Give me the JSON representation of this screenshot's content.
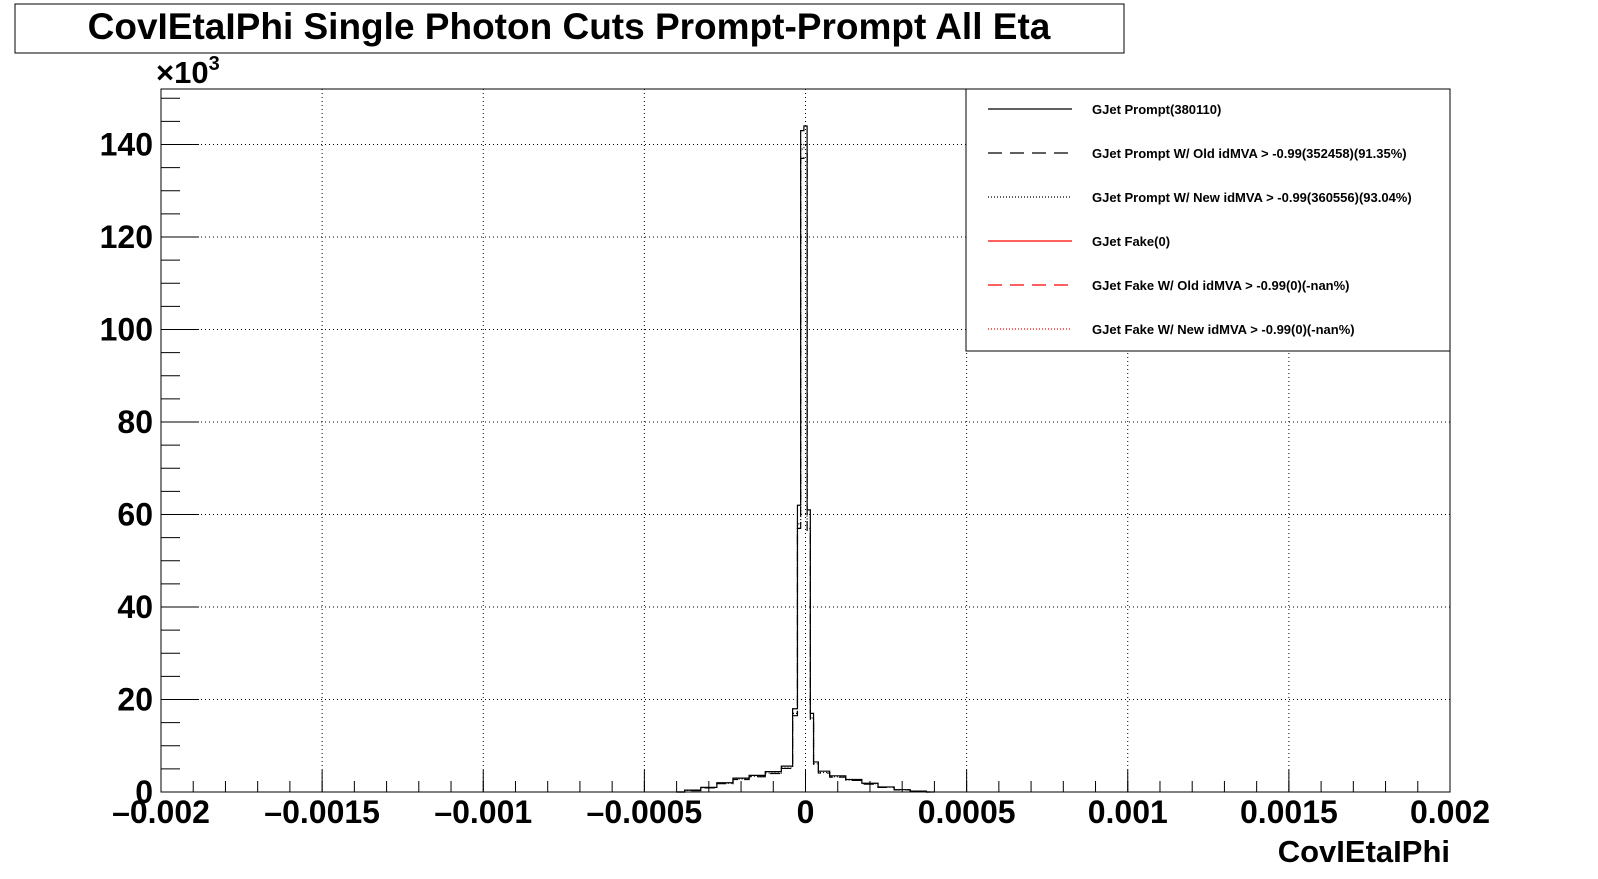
{
  "chart_data": {
    "type": "line",
    "title": "CovIEtaIPhi Single Photon Cuts Prompt-Prompt All Eta",
    "xlabel": "CovIEtaIPhi",
    "ylabel": "",
    "xlim": [
      -0.002,
      0.002
    ],
    "ylim": [
      0,
      152
    ],
    "y_multiplier": "10",
    "y_multiplier_exp": "3",
    "grid": true,
    "legend_position": "top-right",
    "x_ticks": [
      -0.002,
      -0.0015,
      -0.001,
      -0.0005,
      0,
      0.0005,
      0.001,
      0.0015,
      0.002
    ],
    "x_tick_labels": [
      "–0.002",
      "–0.0015",
      "–0.001",
      "–0.0005",
      "0",
      "0.0005",
      "0.001",
      "0.0015",
      "0.002"
    ],
    "y_ticks": [
      0,
      20,
      40,
      60,
      80,
      100,
      120,
      140
    ],
    "y_tick_labels": [
      "0",
      "20",
      "40",
      "60",
      "80",
      "100",
      "120",
      "140"
    ],
    "series": [
      {
        "name": "GJet Prompt(380110)",
        "color": "#000000",
        "style": "solid",
        "x": [
          -0.0004,
          -0.00035,
          -0.0003,
          -0.00025,
          -0.0002,
          -0.00015,
          -0.0001,
          -5e-05,
          -3e-05,
          -2e-05,
          -1e-05,
          0,
          1e-05,
          2e-05,
          3e-05,
          5e-05,
          0.0001,
          0.00015,
          0.0002,
          0.00025,
          0.0003,
          0.00035,
          0.0004
        ],
        "y": [
          0,
          0.4,
          1.0,
          2.0,
          3.0,
          3.6,
          4.4,
          5.6,
          18,
          62,
          143,
          144,
          61,
          17,
          6.5,
          4.5,
          3.5,
          2.7,
          1.9,
          1.1,
          0.5,
          0.2,
          0
        ]
      },
      {
        "name": "GJet Prompt W/ Old idMVA > -0.99(352458)(91.35%)",
        "color": "#000000",
        "style": "dashed",
        "x": [
          -0.0004,
          -0.00035,
          -0.0003,
          -0.00025,
          -0.0002,
          -0.00015,
          -0.0001,
          -5e-05,
          -3e-05,
          -2e-05,
          -1e-05,
          0,
          1e-05,
          2e-05,
          3e-05,
          5e-05,
          0.0001,
          0.00015,
          0.0002,
          0.00025,
          0.0003,
          0.00035,
          0.0004
        ],
        "y": [
          0,
          0.3,
          0.9,
          1.8,
          2.7,
          3.3,
          4.0,
          5.1,
          16.5,
          57,
          137,
          138,
          56,
          15.6,
          6.0,
          4.1,
          3.2,
          2.5,
          1.7,
          1.0,
          0.45,
          0.18,
          0
        ]
      },
      {
        "name": "GJet Prompt W/ New idMVA > -0.99(360556)(93.04%)",
        "color": "#000000",
        "style": "dotted",
        "x": [
          -0.0004,
          -0.00035,
          -0.0003,
          -0.00025,
          -0.0002,
          -0.00015,
          -0.0001,
          -5e-05,
          -3e-05,
          -2e-05,
          -1e-05,
          0,
          1e-05,
          2e-05,
          3e-05,
          5e-05,
          0.0001,
          0.00015,
          0.0002,
          0.00025,
          0.0003,
          0.00035,
          0.0004
        ],
        "y": [
          0,
          0.35,
          0.95,
          1.9,
          2.8,
          3.4,
          4.1,
          5.2,
          17,
          58,
          139,
          140,
          57,
          16,
          6.1,
          4.2,
          3.3,
          2.6,
          1.8,
          1.05,
          0.48,
          0.19,
          0
        ]
      },
      {
        "name": "GJet Fake(0)",
        "color": "#ff0000",
        "style": "solid",
        "x": [],
        "y": []
      },
      {
        "name": "GJet Fake W/ Old idMVA > -0.99(0)(-nan%)",
        "color": "#ff0000",
        "style": "dashed",
        "x": [],
        "y": []
      },
      {
        "name": "GJet Fake W/ New idMVA > -0.99(0)(-nan%)",
        "color": "#ff0000",
        "style": "dotted",
        "x": [],
        "y": []
      }
    ]
  }
}
